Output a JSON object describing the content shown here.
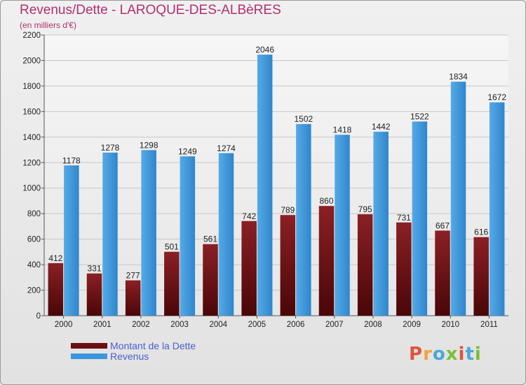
{
  "title": "Revenus/Dette - LAROQUE-DES-ALBèRES",
  "subtitle": "(en milliers d'€)",
  "colors": {
    "dette": "#7a1416",
    "revenus": "#3d97dc",
    "title": "#b03070",
    "legend_text": "#4a5fd0"
  },
  "legend": [
    {
      "label": "Montant de la Dette",
      "color": "#7a1416"
    },
    {
      "label": "Revenus",
      "color": "#3d97dc"
    }
  ],
  "logo": {
    "text": "Proxiti",
    "colors": [
      "#e0543c",
      "#f0a43a",
      "#4aa8d8",
      "#7bbf3a",
      "#e0543c",
      "#4aa8d8",
      "#7bbf3a"
    ]
  },
  "chart_data": {
    "type": "bar",
    "title": "Revenus/Dette - LAROQUE-DES-ALBèRES",
    "subtitle": "(en milliers d'€)",
    "categories": [
      "2000",
      "2001",
      "2002",
      "2003",
      "2004",
      "2005",
      "2006",
      "2007",
      "2008",
      "2009",
      "2010",
      "2011"
    ],
    "series": [
      {
        "name": "Montant de la Dette",
        "values": [
          412,
          331,
          277,
          501,
          561,
          742,
          789,
          860,
          795,
          731,
          667,
          616
        ]
      },
      {
        "name": "Revenus",
        "values": [
          1178,
          1278,
          1298,
          1249,
          1274,
          2046,
          1502,
          1418,
          1442,
          1522,
          1834,
          1672
        ]
      }
    ],
    "ylim": [
      0,
      2200
    ],
    "yticks": [
      0,
      200,
      400,
      600,
      800,
      1000,
      1200,
      1400,
      1600,
      1800,
      2000,
      2200
    ],
    "grid": true,
    "legend_position": "bottom-left"
  }
}
